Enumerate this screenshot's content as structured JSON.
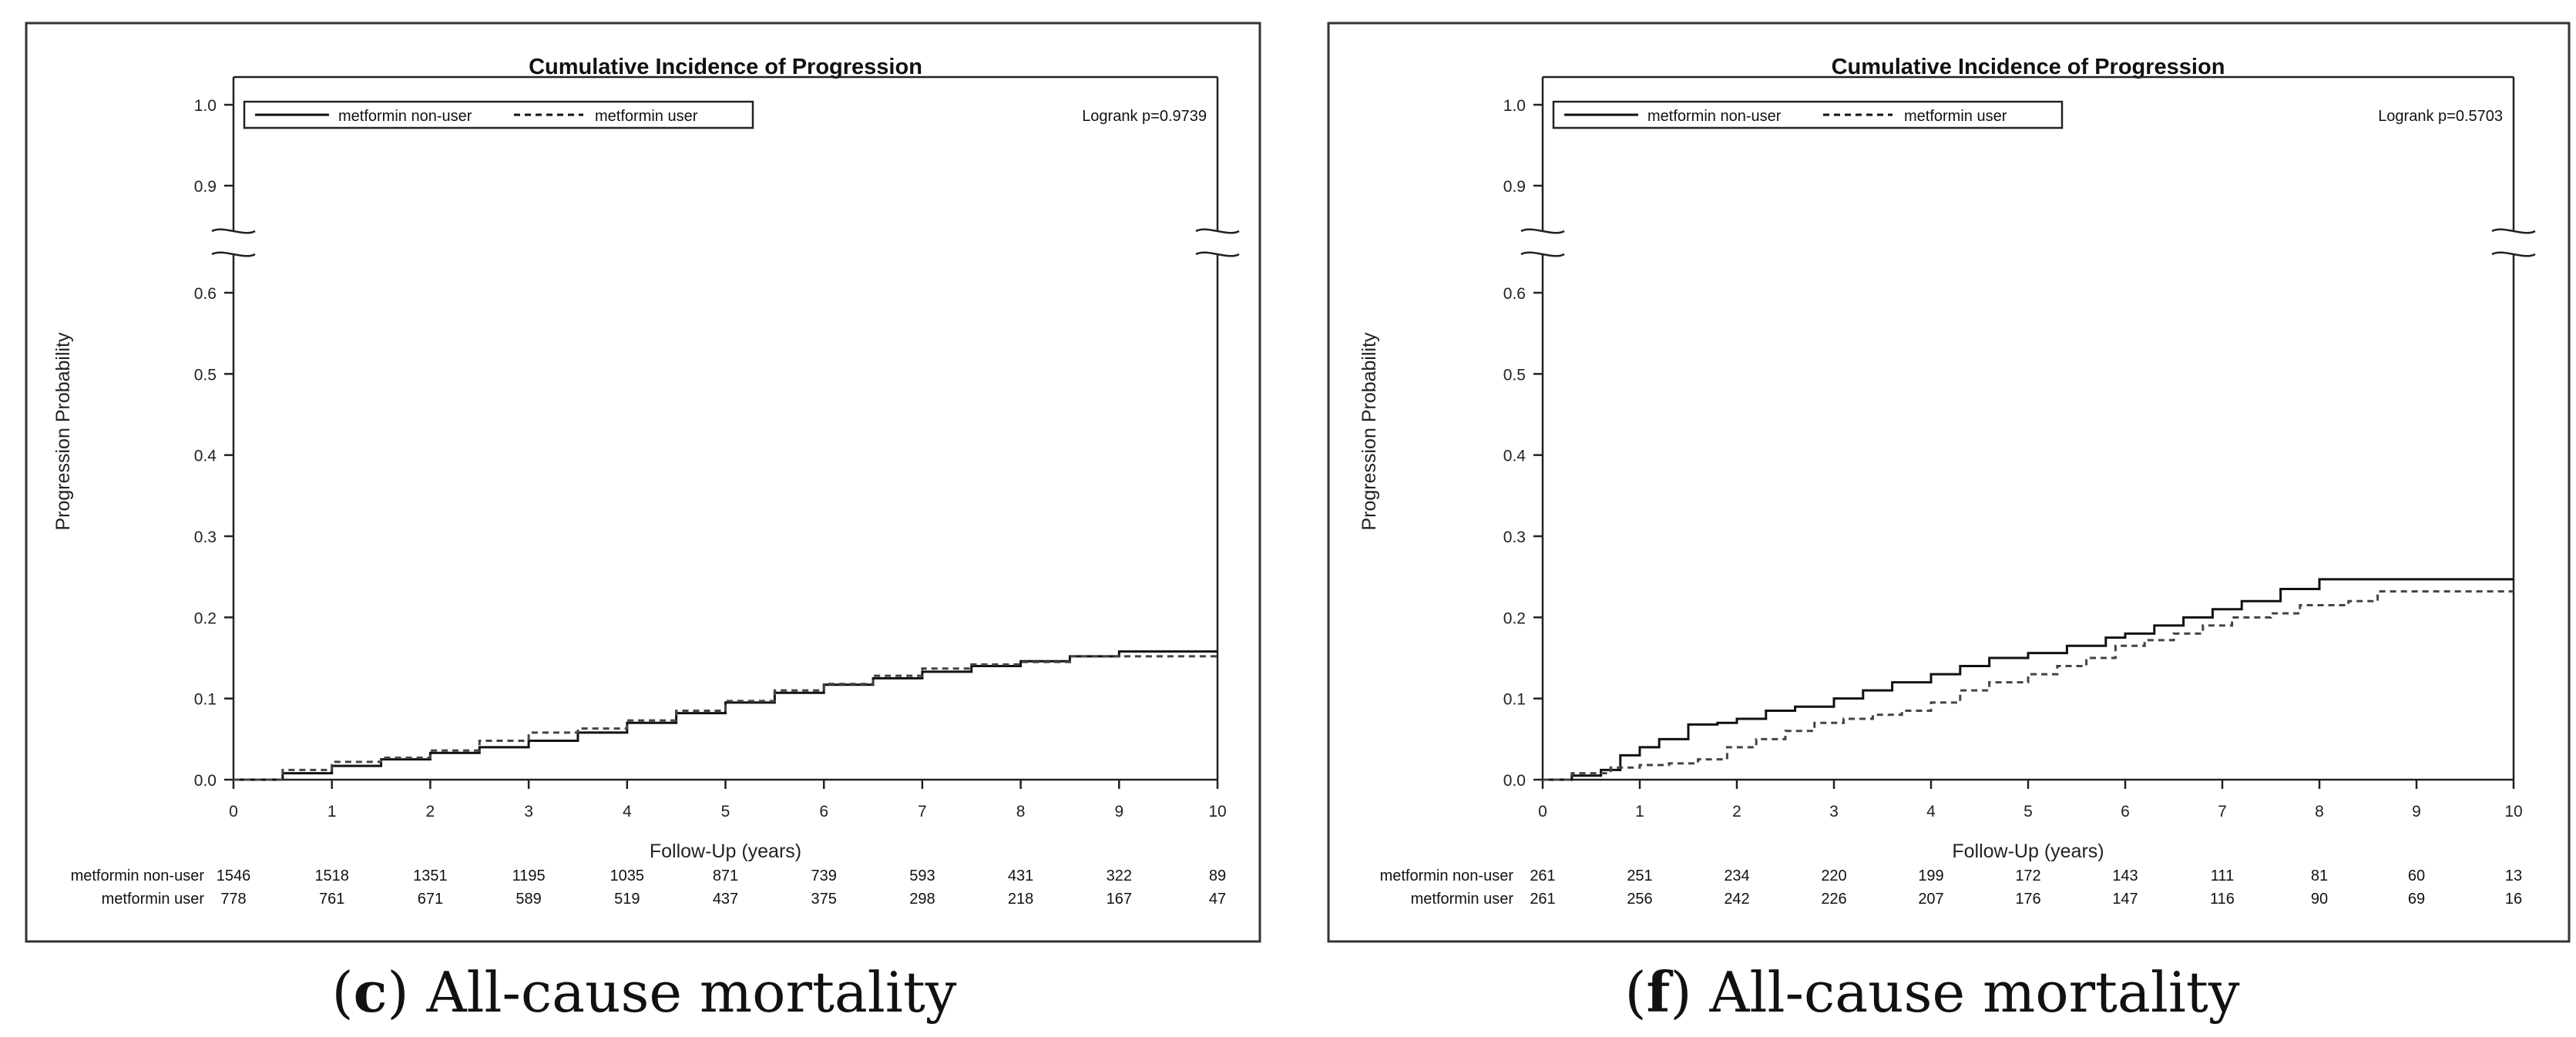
{
  "chart_data": [
    {
      "type": "line",
      "panel_letter": "c",
      "caption": "All-cause mortality",
      "title": "Cumulative Incidence of Progression",
      "xlabel": "Follow-Up (years)",
      "ylabel": "Progression Probability",
      "xlim": [
        0,
        10
      ],
      "xticks": [
        "0",
        "1",
        "2",
        "3",
        "4",
        "5",
        "6",
        "7",
        "8",
        "9",
        "10"
      ],
      "yticks_lower": [
        "0.0",
        "0.1",
        "0.2",
        "0.3",
        "0.4",
        "0.5",
        "0.6"
      ],
      "yticks_upper": [
        "0.9",
        "1.0"
      ],
      "axis_break": true,
      "annotation": "Logrank p=0.9739",
      "legend": [
        "metformin non-user",
        "metformin user"
      ],
      "series": [
        {
          "name": "metformin non-user",
          "style": "solid",
          "x": [
            0,
            0.5,
            1,
            1.5,
            2,
            2.5,
            3,
            3.5,
            4,
            4.5,
            5,
            5.5,
            6,
            6.5,
            7,
            7.5,
            8,
            8.5,
            9,
            10
          ],
          "y": [
            0,
            0.008,
            0.017,
            0.025,
            0.033,
            0.04,
            0.048,
            0.058,
            0.07,
            0.082,
            0.095,
            0.107,
            0.117,
            0.125,
            0.133,
            0.14,
            0.146,
            0.152,
            0.158,
            0.158
          ]
        },
        {
          "name": "metformin user",
          "style": "dashed",
          "x": [
            0,
            0.5,
            1,
            1.5,
            2,
            2.5,
            3,
            3.5,
            4,
            4.5,
            5,
            5.5,
            6,
            6.5,
            7,
            7.5,
            8,
            8.5,
            9,
            10
          ],
          "y": [
            0,
            0.012,
            0.022,
            0.027,
            0.036,
            0.048,
            0.058,
            0.063,
            0.073,
            0.085,
            0.097,
            0.11,
            0.118,
            0.128,
            0.137,
            0.142,
            0.145,
            0.152,
            0.152,
            0.152
          ]
        }
      ],
      "risk_table": {
        "rows": [
          {
            "label": "metformin non-user",
            "values": [
              "1546",
              "1518",
              "1351",
              "1195",
              "1035",
              "871",
              "739",
              "593",
              "431",
              "322",
              "89"
            ]
          },
          {
            "label": "metformin user",
            "values": [
              "778",
              "761",
              "671",
              "589",
              "519",
              "437",
              "375",
              "298",
              "218",
              "167",
              "47"
            ]
          }
        ]
      }
    },
    {
      "type": "line",
      "panel_letter": "f",
      "caption": "All-cause mortality",
      "title": "Cumulative Incidence of Progression",
      "xlabel": "Follow-Up (years)",
      "ylabel": "Progression Probability",
      "xlim": [
        0,
        10
      ],
      "xticks": [
        "0",
        "1",
        "2",
        "3",
        "4",
        "5",
        "6",
        "7",
        "8",
        "9",
        "10"
      ],
      "yticks_lower": [
        "0.0",
        "0.1",
        "0.2",
        "0.3",
        "0.4",
        "0.5",
        "0.6"
      ],
      "yticks_upper": [
        "0.9",
        "1.0"
      ],
      "axis_break": true,
      "annotation": "Logrank p=0.5703",
      "legend": [
        "metformin non-user",
        "metformin user"
      ],
      "series": [
        {
          "name": "metformin non-user",
          "style": "solid",
          "x": [
            0,
            0.3,
            0.6,
            0.8,
            1,
            1.2,
            1.5,
            1.8,
            2,
            2.3,
            2.6,
            3,
            3.3,
            3.6,
            4,
            4.3,
            4.6,
            5,
            5.4,
            5.8,
            6,
            6.3,
            6.6,
            6.9,
            7.2,
            7.6,
            8,
            10
          ],
          "y": [
            0,
            0.005,
            0.012,
            0.03,
            0.04,
            0.05,
            0.068,
            0.07,
            0.075,
            0.085,
            0.09,
            0.1,
            0.11,
            0.12,
            0.13,
            0.14,
            0.15,
            0.156,
            0.165,
            0.175,
            0.18,
            0.19,
            0.2,
            0.21,
            0.22,
            0.235,
            0.247,
            0.247
          ]
        },
        {
          "name": "metformin user",
          "style": "dashed",
          "x": [
            0,
            0.3,
            0.7,
            1,
            1.3,
            1.6,
            1.9,
            2.2,
            2.5,
            2.8,
            3.1,
            3.4,
            3.7,
            4,
            4.3,
            4.6,
            5,
            5.3,
            5.6,
            5.9,
            6.2,
            6.5,
            6.8,
            7.1,
            7.5,
            7.8,
            8.3,
            8.6,
            10
          ],
          "y": [
            0,
            0.008,
            0.015,
            0.018,
            0.02,
            0.025,
            0.04,
            0.05,
            0.06,
            0.07,
            0.075,
            0.08,
            0.085,
            0.095,
            0.11,
            0.12,
            0.13,
            0.14,
            0.15,
            0.165,
            0.172,
            0.18,
            0.19,
            0.2,
            0.205,
            0.215,
            0.22,
            0.232,
            0.232
          ]
        }
      ],
      "risk_table": {
        "rows": [
          {
            "label": "metformin non-user",
            "values": [
              "261",
              "251",
              "234",
              "220",
              "199",
              "172",
              "143",
              "111",
              "81",
              "60",
              "13"
            ]
          },
          {
            "label": "metformin user",
            "values": [
              "261",
              "256",
              "242",
              "226",
              "207",
              "176",
              "147",
              "116",
              "90",
              "69",
              "16"
            ]
          }
        ]
      }
    }
  ]
}
